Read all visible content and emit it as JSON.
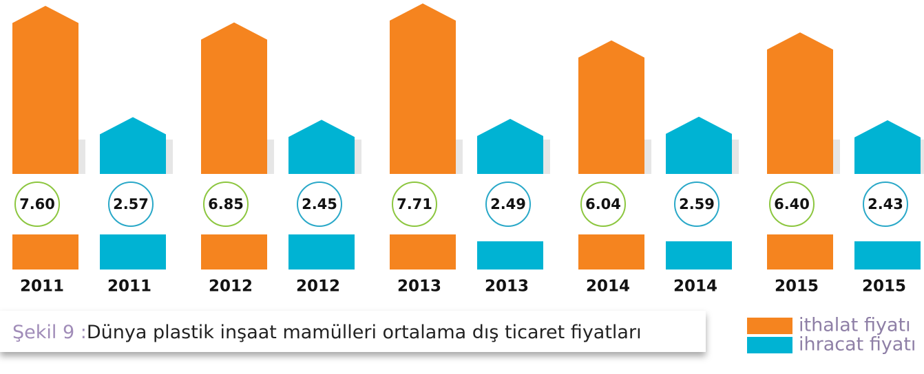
{
  "chart_data": {
    "type": "bar",
    "caption_label": "Şekil 9 :",
    "title": "Dünya plastik inşaat mamülleri ortalama dış ticaret fiyatları",
    "categories": [
      "2011",
      "2012",
      "2013",
      "2014",
      "2015"
    ],
    "series": [
      {
        "name": "ithalat fiyatı",
        "color": "#f5841f",
        "ring": "#8cc63f",
        "values": [
          7.6,
          6.85,
          7.71,
          6.04,
          6.4
        ],
        "value_labels": [
          "7.60",
          "6.85",
          "7.71",
          "6.04",
          "6.40"
        ]
      },
      {
        "name": "ihracat fiyatı",
        "color": "#00b3d3",
        "ring": "#29a8c8",
        "values": [
          2.57,
          2.45,
          2.49,
          2.59,
          2.43
        ],
        "value_labels": [
          "2.57",
          "2.45",
          "2.49",
          "2.59",
          "2.43"
        ]
      }
    ]
  }
}
